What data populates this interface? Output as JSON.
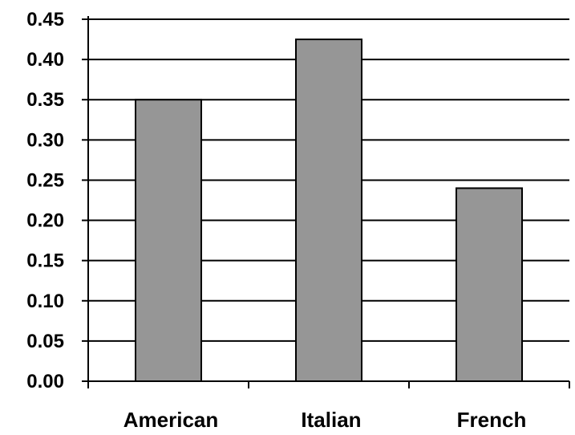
{
  "chart_data": {
    "type": "bar",
    "categories": [
      "American",
      "Italian",
      "French"
    ],
    "values": [
      0.35,
      0.425,
      0.24
    ],
    "title": "",
    "xlabel": "",
    "ylabel": "",
    "ylim": [
      0,
      0.45
    ],
    "yticks": [
      "0.00",
      "0.05",
      "0.10",
      "0.15",
      "0.20",
      "0.25",
      "0.30",
      "0.35",
      "0.40",
      "0.45"
    ],
    "grid": true,
    "legend": "none",
    "colors": {
      "bar_fill": "#969696",
      "bar_stroke": "#000000",
      "gridline": "#000000",
      "axis": "#000000",
      "background": "#ffffff"
    }
  }
}
